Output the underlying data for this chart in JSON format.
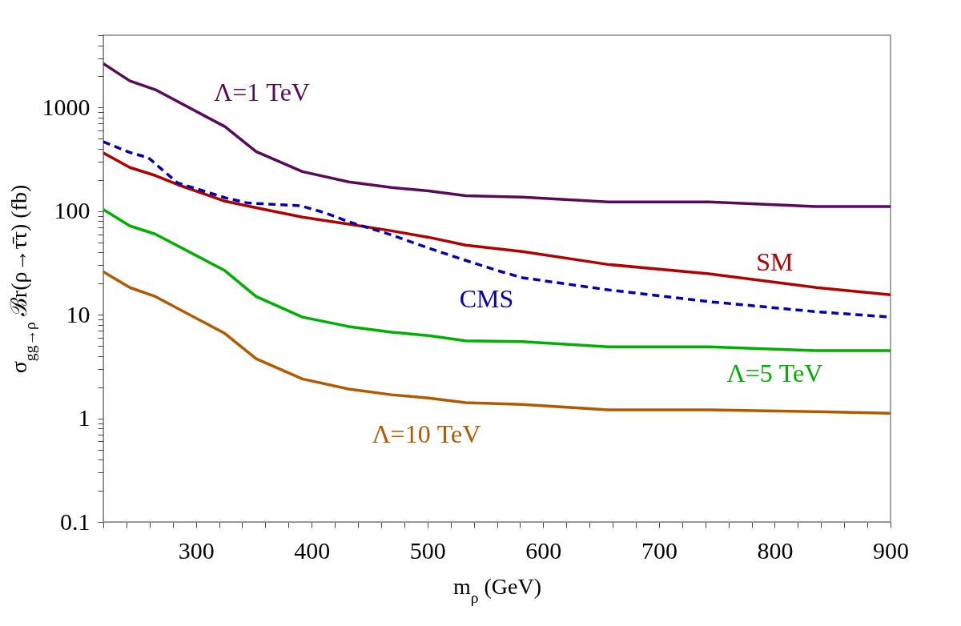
{
  "chart_data": {
    "type": "line",
    "xlabel": "m$_{ρ}$ (GeV)",
    "ylabel": "σ$_{gg→ρ}$ ℬr(ρ→τ̄τ) (fb)",
    "log": "y",
    "xlim": [
      220,
      900
    ],
    "ylim": [
      0.1,
      5000
    ],
    "xticks": [
      {
        "value": 220,
        "label": null
      },
      {
        "value": 240,
        "label": null
      },
      {
        "value": 260,
        "label": null
      },
      {
        "value": 280,
        "label": null
      },
      300,
      {
        "value": 320,
        "label": null
      },
      {
        "value": 340,
        "label": null
      },
      {
        "value": 360,
        "label": null
      },
      {
        "value": 380,
        "label": null
      },
      400,
      {
        "value": 420,
        "label": null
      },
      {
        "value": 440,
        "label": null
      },
      {
        "value": 460,
        "label": null
      },
      {
        "value": 480,
        "label": null
      },
      500,
      {
        "value": 520,
        "label": null
      },
      {
        "value": 540,
        "label": null
      },
      {
        "value": 560,
        "label": null
      },
      {
        "value": 580,
        "label": null
      },
      600,
      {
        "value": 620,
        "label": null
      },
      {
        "value": 640,
        "label": null
      },
      {
        "value": 660,
        "label": null
      },
      {
        "value": 680,
        "label": null
      },
      700,
      {
        "value": 720,
        "label": null
      },
      {
        "value": 740,
        "label": null
      },
      {
        "value": 760,
        "label": null
      },
      {
        "value": 780,
        "label": null
      },
      800,
      {
        "value": 820,
        "label": null
      },
      {
        "value": 840,
        "label": null
      },
      {
        "value": 860,
        "label": null
      },
      {
        "value": 880,
        "label": null
      },
      900
    ],
    "yticks": [
      0.1,
      {
        "value": 0.2,
        "label": null
      },
      {
        "value": 0.3,
        "label": null
      },
      {
        "value": 0.4,
        "label": null
      },
      {
        "value": 0.5,
        "label": null
      },
      {
        "value": 0.6,
        "label": null
      },
      {
        "value": 0.7,
        "label": null
      },
      {
        "value": 0.8,
        "label": null
      },
      {
        "value": 0.9,
        "label": null
      },
      1,
      {
        "value": 2,
        "label": null
      },
      {
        "value": 3,
        "label": null
      },
      {
        "value": 4,
        "label": null
      },
      {
        "value": 5,
        "label": null
      },
      {
        "value": 6,
        "label": null
      },
      {
        "value": 7,
        "label": null
      },
      {
        "value": 8,
        "label": null
      },
      {
        "value": 9,
        "label": null
      },
      10,
      {
        "value": 20,
        "label": null
      },
      {
        "value": 30,
        "label": null
      },
      {
        "value": 40,
        "label": null
      },
      {
        "value": 50,
        "label": null
      },
      {
        "value": 60,
        "label": null
      },
      {
        "value": 70,
        "label": null
      },
      {
        "value": 80,
        "label": null
      },
      {
        "value": 90,
        "label": null
      },
      100,
      {
        "value": 200,
        "label": null
      },
      {
        "value": 300,
        "label": null
      },
      {
        "value": 400,
        "label": null
      },
      {
        "value": 500,
        "label": null
      },
      {
        "value": 600,
        "label": null
      },
      {
        "value": 700,
        "label": null
      },
      {
        "value": 800,
        "label": null
      },
      {
        "value": 900,
        "label": null
      },
      1000,
      {
        "value": 2000,
        "label": null
      },
      {
        "value": 3000,
        "label": null
      },
      {
        "value": 4000,
        "label": null
      },
      {
        "value": 5000,
        "label": null
      }
    ],
    "series": [
      {
        "name": "Λ=1 TeV",
        "color": "#5a0a5a",
        "line_style": "solid",
        "x": [
          220,
          243,
          265,
          325,
          352,
          392,
          432,
          469,
          501,
          533,
          582,
          656,
          743,
          836,
          900
        ],
        "values": [
          2660,
          1810,
          1490,
          656,
          376,
          241,
          192,
          169,
          157,
          141,
          137,
          123,
          123,
          111,
          111
        ]
      },
      {
        "name": "SM",
        "color": "#b00000",
        "line_style": "solid",
        "x": [
          220,
          243,
          265,
          284,
          325,
          352,
          392,
          432,
          469,
          501,
          533,
          582,
          656,
          743,
          836,
          900
        ],
        "values": [
          365,
          264,
          221,
          181,
          125,
          108,
          87.5,
          75,
          64.6,
          56,
          47,
          40.7,
          30.6,
          24.9,
          18.3,
          15.6
        ]
      },
      {
        "name": "CMS",
        "color": "#0000b0",
        "line_style": "dashed",
        "x": [
          220,
          243,
          259,
          284,
          325,
          345,
          390,
          411,
          432,
          469,
          501,
          533,
          561,
          582,
          656,
          743,
          836,
          900
        ],
        "values": [
          468,
          369,
          328,
          188,
          135,
          120,
          113,
          97,
          79,
          59,
          44,
          33.5,
          26.6,
          22.8,
          17.4,
          13.4,
          10.7,
          9.5
        ]
      },
      {
        "name": "Λ=5 TeV",
        "color": "#00b000",
        "line_style": "solid",
        "x": [
          220,
          243,
          265,
          325,
          352,
          392,
          432,
          469,
          501,
          533,
          582,
          656,
          743,
          836,
          900
        ],
        "values": [
          104,
          72,
          60,
          26.7,
          15,
          9.5,
          7.7,
          6.8,
          6.3,
          5.6,
          5.5,
          4.9,
          4.9,
          4.5,
          4.5
        ]
      },
      {
        "name": "Λ=10 TeV",
        "color": "#b35900",
        "line_style": "solid",
        "x": [
          220,
          243,
          265,
          325,
          352,
          392,
          432,
          469,
          501,
          533,
          582,
          656,
          743,
          836,
          900
        ],
        "values": [
          26,
          18.3,
          15,
          6.6,
          3.76,
          2.4,
          1.92,
          1.69,
          1.57,
          1.42,
          1.36,
          1.21,
          1.21,
          1.16,
          1.12
        ]
      }
    ]
  }
}
